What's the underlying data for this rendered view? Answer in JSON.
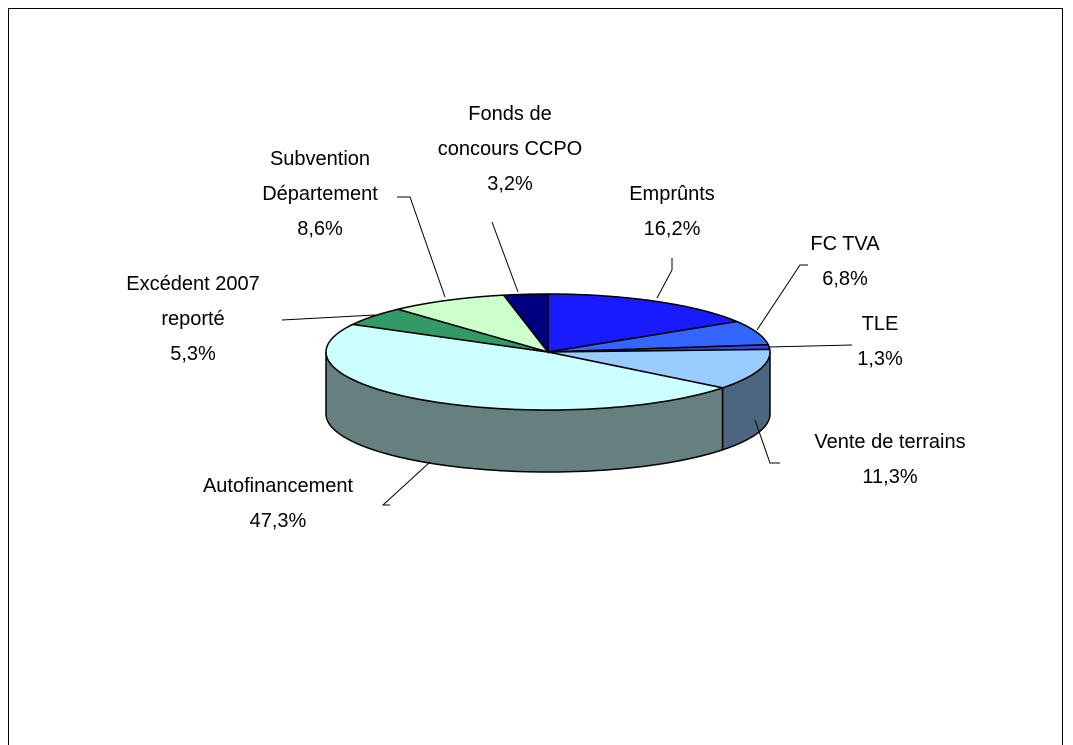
{
  "chart_data": {
    "type": "pie",
    "categories": [
      "Emprûnts",
      "FC TVA",
      "TLE",
      "Vente de terrains",
      "Autofinancement",
      "Excédent 2007 reporté",
      "Subvention Département",
      "Fonds de concours CCPO"
    ],
    "values": [
      16.2,
      6.8,
      1.3,
      11.3,
      47.3,
      5.3,
      8.6,
      3.2
    ],
    "value_labels": [
      "16,2%",
      "6,8%",
      "1,3%",
      "11,3%",
      "47,3%",
      "5,3%",
      "8,6%",
      "3,2%"
    ],
    "colors": [
      "#1a1aff",
      "#3366ff",
      "#3349d9",
      "#99ccff",
      "#ccffff",
      "#339966",
      "#ccffcc",
      "#000080"
    ]
  }
}
